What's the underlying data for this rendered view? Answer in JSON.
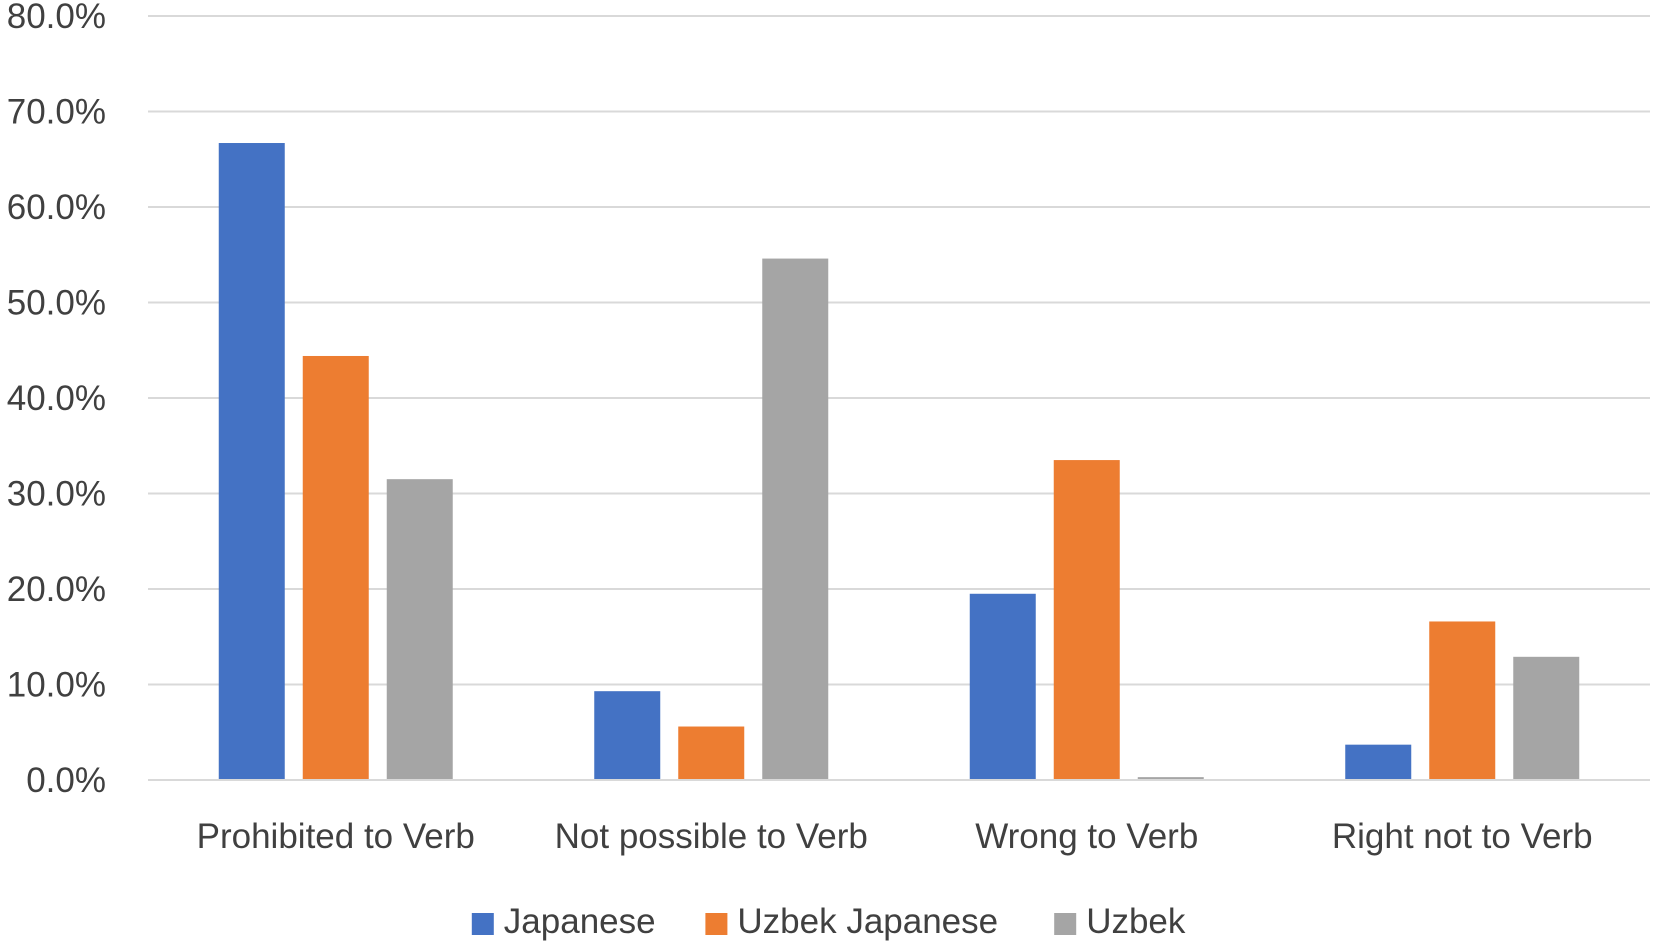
{
  "chart_data": {
    "type": "bar",
    "title": "",
    "xlabel": "",
    "ylabel": "",
    "categories": [
      "Prohibited to Verb",
      "Not possible to Verb",
      "Wrong to Verb",
      "Right not to Verb"
    ],
    "series": [
      {
        "name": "Japanese",
        "color": "#4472C4",
        "values": [
          66.7,
          9.3,
          19.5,
          3.7
        ]
      },
      {
        "name": "Uzbek Japanese",
        "color": "#ED7D31",
        "values": [
          44.4,
          5.6,
          33.5,
          16.6
        ]
      },
      {
        "name": "Uzbek",
        "color": "#A5A5A5",
        "values": [
          31.5,
          54.6,
          0.3,
          12.9
        ]
      }
    ],
    "ylim": [
      0,
      80
    ],
    "ytick_step": 10,
    "ytick_labels": [
      "0.0%",
      "10.0%",
      "20.0%",
      "30.0%",
      "40.0%",
      "50.0%",
      "60.0%",
      "70.0%",
      "80.0%"
    ],
    "grid": true,
    "legend_position": "bottom"
  }
}
